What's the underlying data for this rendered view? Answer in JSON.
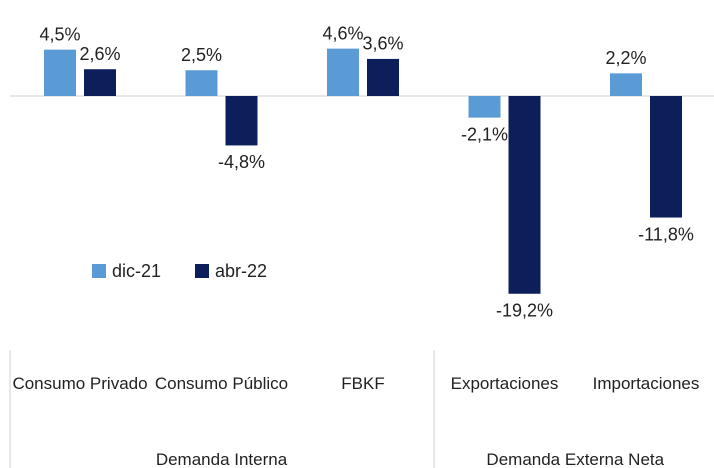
{
  "chart_data": {
    "type": "bar",
    "categories": [
      "Consumo Privado",
      "Consumo Público",
      "FBKF",
      "Exportaciones",
      "Importaciones"
    ],
    "groups": [
      {
        "label": "Demanda Interna",
        "size": 3
      },
      {
        "label": "Demanda Externa Neta",
        "size": 2
      }
    ],
    "series": [
      {
        "name": "dic-21",
        "color": "#5b9bd5",
        "values": [
          4.5,
          2.5,
          4.6,
          -2.1,
          2.2
        ],
        "value_labels": [
          "4,5%",
          "2,5%",
          "4,6%",
          "-2,1%",
          "2,2%"
        ]
      },
      {
        "name": "abr-22",
        "color": "#0c1f5a",
        "values": [
          2.6,
          -4.8,
          3.6,
          -19.2,
          -11.8
        ],
        "value_labels": [
          "2,6%",
          "-4,8%",
          "3,6%",
          "-19,2%",
          "-11,8%"
        ]
      }
    ],
    "ylim": [
      -20,
      5
    ]
  }
}
